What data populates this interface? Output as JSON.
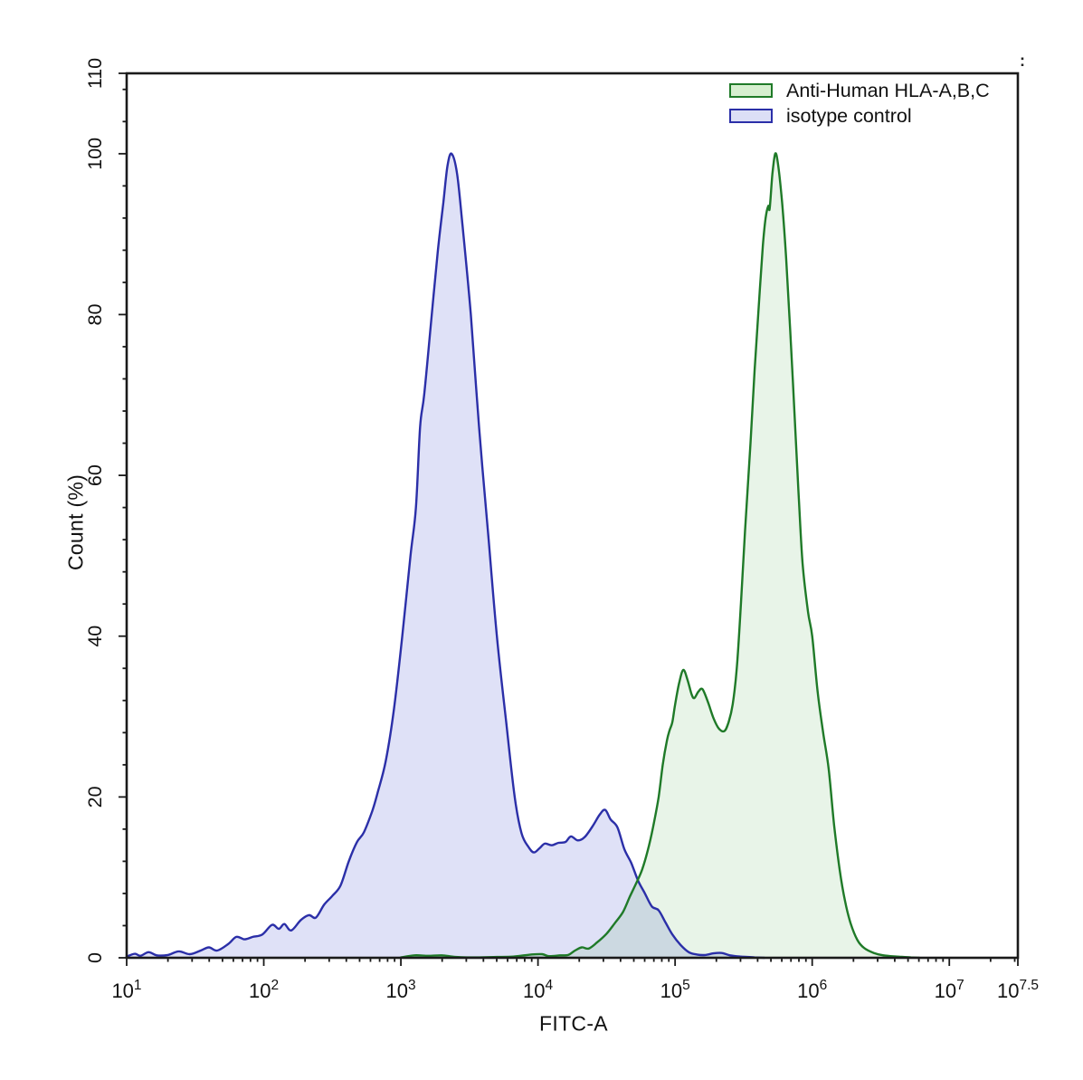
{
  "corner_mark": ":",
  "chart_data": {
    "type": "area",
    "title": "",
    "grid": false,
    "legend_position": "top-right",
    "x_axis": {
      "label": "FITC-A",
      "scale": "log10",
      "range_log10": [
        1,
        7.5
      ],
      "major_tick_exponents": [
        "1",
        "2",
        "3",
        "4",
        "5",
        "6",
        "7",
        "7.5"
      ]
    },
    "y_axis": {
      "label": "Count (%)",
      "range": [
        0,
        110
      ],
      "major_ticks": [
        0,
        20,
        40,
        60,
        80,
        100,
        110
      ],
      "minor_tick_step": 4
    },
    "series": [
      {
        "name": "Anti-Human HLA-A,B,C",
        "line_color": "#1f7a28",
        "fill_color": "rgba(80,170,80,0.13)",
        "swatch_fill": "#d6efcf",
        "points_log10x_pct": [
          [
            3.0,
            0.05
          ],
          [
            3.1,
            0.3
          ],
          [
            3.2,
            0.25
          ],
          [
            3.3,
            0.3
          ],
          [
            3.4,
            0.1
          ],
          [
            3.55,
            0.05
          ],
          [
            3.7,
            0.1
          ],
          [
            3.82,
            0.15
          ],
          [
            3.95,
            0.4
          ],
          [
            4.03,
            0.45
          ],
          [
            4.08,
            0.2
          ],
          [
            4.16,
            0.3
          ],
          [
            4.22,
            0.35
          ],
          [
            4.27,
            0.9
          ],
          [
            4.32,
            1.3
          ],
          [
            4.37,
            1.15
          ],
          [
            4.43,
            1.9
          ],
          [
            4.5,
            3.0
          ],
          [
            4.56,
            4.3
          ],
          [
            4.62,
            5.7
          ],
          [
            4.67,
            7.6
          ],
          [
            4.72,
            9.4
          ],
          [
            4.76,
            11.0
          ],
          [
            4.8,
            13.3
          ],
          [
            4.84,
            16.3
          ],
          [
            4.88,
            20.0
          ],
          [
            4.91,
            24.0
          ],
          [
            4.94,
            27.0
          ],
          [
            4.96,
            28.3
          ],
          [
            4.98,
            29.3
          ],
          [
            5.0,
            31.5
          ],
          [
            5.03,
            34.2
          ],
          [
            5.06,
            35.8
          ],
          [
            5.09,
            34.6
          ],
          [
            5.12,
            32.8
          ],
          [
            5.14,
            32.3
          ],
          [
            5.17,
            33.1
          ],
          [
            5.2,
            33.4
          ],
          [
            5.24,
            31.8
          ],
          [
            5.28,
            29.8
          ],
          [
            5.32,
            28.5
          ],
          [
            5.36,
            28.2
          ],
          [
            5.39,
            29.3
          ],
          [
            5.42,
            31.5
          ],
          [
            5.45,
            36.0
          ],
          [
            5.48,
            44.0
          ],
          [
            5.51,
            53.0
          ],
          [
            5.55,
            64.0
          ],
          [
            5.58,
            73.0
          ],
          [
            5.61,
            81.0
          ],
          [
            5.64,
            88.5
          ],
          [
            5.66,
            92.0
          ],
          [
            5.68,
            93.5
          ],
          [
            5.69,
            93.2
          ],
          [
            5.71,
            97.5
          ],
          [
            5.73,
            100.0
          ],
          [
            5.75,
            98.8
          ],
          [
            5.78,
            94.0
          ],
          [
            5.81,
            87.0
          ],
          [
            5.84,
            78.0
          ],
          [
            5.87,
            68.0
          ],
          [
            5.9,
            58.0
          ],
          [
            5.93,
            49.0
          ],
          [
            5.97,
            43.0
          ],
          [
            6.0,
            40.0
          ],
          [
            6.04,
            33.0
          ],
          [
            6.08,
            28.0
          ],
          [
            6.12,
            23.5
          ],
          [
            6.16,
            16.5
          ],
          [
            6.2,
            11.0
          ],
          [
            6.24,
            7.0
          ],
          [
            6.28,
            4.3
          ],
          [
            6.33,
            2.2
          ],
          [
            6.38,
            1.2
          ],
          [
            6.45,
            0.6
          ],
          [
            6.52,
            0.3
          ],
          [
            6.62,
            0.15
          ],
          [
            6.72,
            0.05
          ],
          [
            6.78,
            0.0
          ]
        ]
      },
      {
        "name": "isotype control",
        "line_color": "#2b2fa8",
        "fill_color": "rgba(110,120,220,0.22)",
        "swatch_fill": "#dcdff6",
        "points_log10x_pct": [
          [
            1.0,
            0.15
          ],
          [
            1.06,
            0.5
          ],
          [
            1.1,
            0.25
          ],
          [
            1.16,
            0.7
          ],
          [
            1.22,
            0.3
          ],
          [
            1.3,
            0.35
          ],
          [
            1.38,
            0.8
          ],
          [
            1.46,
            0.45
          ],
          [
            1.54,
            0.9
          ],
          [
            1.6,
            1.3
          ],
          [
            1.66,
            0.9
          ],
          [
            1.74,
            1.7
          ],
          [
            1.8,
            2.6
          ],
          [
            1.86,
            2.3
          ],
          [
            1.92,
            2.6
          ],
          [
            1.99,
            2.9
          ],
          [
            2.06,
            4.1
          ],
          [
            2.11,
            3.6
          ],
          [
            2.15,
            4.2
          ],
          [
            2.2,
            3.4
          ],
          [
            2.27,
            4.7
          ],
          [
            2.33,
            5.3
          ],
          [
            2.38,
            5.0
          ],
          [
            2.44,
            6.6
          ],
          [
            2.5,
            7.7
          ],
          [
            2.56,
            9.0
          ],
          [
            2.62,
            12.0
          ],
          [
            2.68,
            14.4
          ],
          [
            2.73,
            15.6
          ],
          [
            2.79,
            18.2
          ],
          [
            2.83,
            20.5
          ],
          [
            2.89,
            24.5
          ],
          [
            2.95,
            31.0
          ],
          [
            3.01,
            40.0
          ],
          [
            3.07,
            50.0
          ],
          [
            3.11,
            56.0
          ],
          [
            3.14,
            66.0
          ],
          [
            3.17,
            70.0
          ],
          [
            3.22,
            79.0
          ],
          [
            3.27,
            88.0
          ],
          [
            3.31,
            94.0
          ],
          [
            3.34,
            98.5
          ],
          [
            3.37,
            100.0
          ],
          [
            3.41,
            97.5
          ],
          [
            3.45,
            91.0
          ],
          [
            3.51,
            80.0
          ],
          [
            3.57,
            66.0
          ],
          [
            3.64,
            52.0
          ],
          [
            3.7,
            40.0
          ],
          [
            3.77,
            29.0
          ],
          [
            3.83,
            20.0
          ],
          [
            3.88,
            15.5
          ],
          [
            3.93,
            13.8
          ],
          [
            3.97,
            13.1
          ],
          [
            4.01,
            13.6
          ],
          [
            4.05,
            14.2
          ],
          [
            4.1,
            14.0
          ],
          [
            4.15,
            14.3
          ],
          [
            4.2,
            14.4
          ],
          [
            4.24,
            15.1
          ],
          [
            4.29,
            14.6
          ],
          [
            4.34,
            15.0
          ],
          [
            4.4,
            16.4
          ],
          [
            4.45,
            17.8
          ],
          [
            4.49,
            18.4
          ],
          [
            4.53,
            17.2
          ],
          [
            4.58,
            16.2
          ],
          [
            4.63,
            13.5
          ],
          [
            4.68,
            11.8
          ],
          [
            4.73,
            9.6
          ],
          [
            4.78,
            8.0
          ],
          [
            4.83,
            6.4
          ],
          [
            4.88,
            5.9
          ],
          [
            4.93,
            4.4
          ],
          [
            4.98,
            2.9
          ],
          [
            5.04,
            1.6
          ],
          [
            5.1,
            0.7
          ],
          [
            5.16,
            0.4
          ],
          [
            5.22,
            0.35
          ],
          [
            5.28,
            0.55
          ],
          [
            5.34,
            0.6
          ],
          [
            5.4,
            0.3
          ],
          [
            5.48,
            0.15
          ],
          [
            5.58,
            0.05
          ],
          [
            5.65,
            0.0
          ]
        ]
      }
    ]
  }
}
